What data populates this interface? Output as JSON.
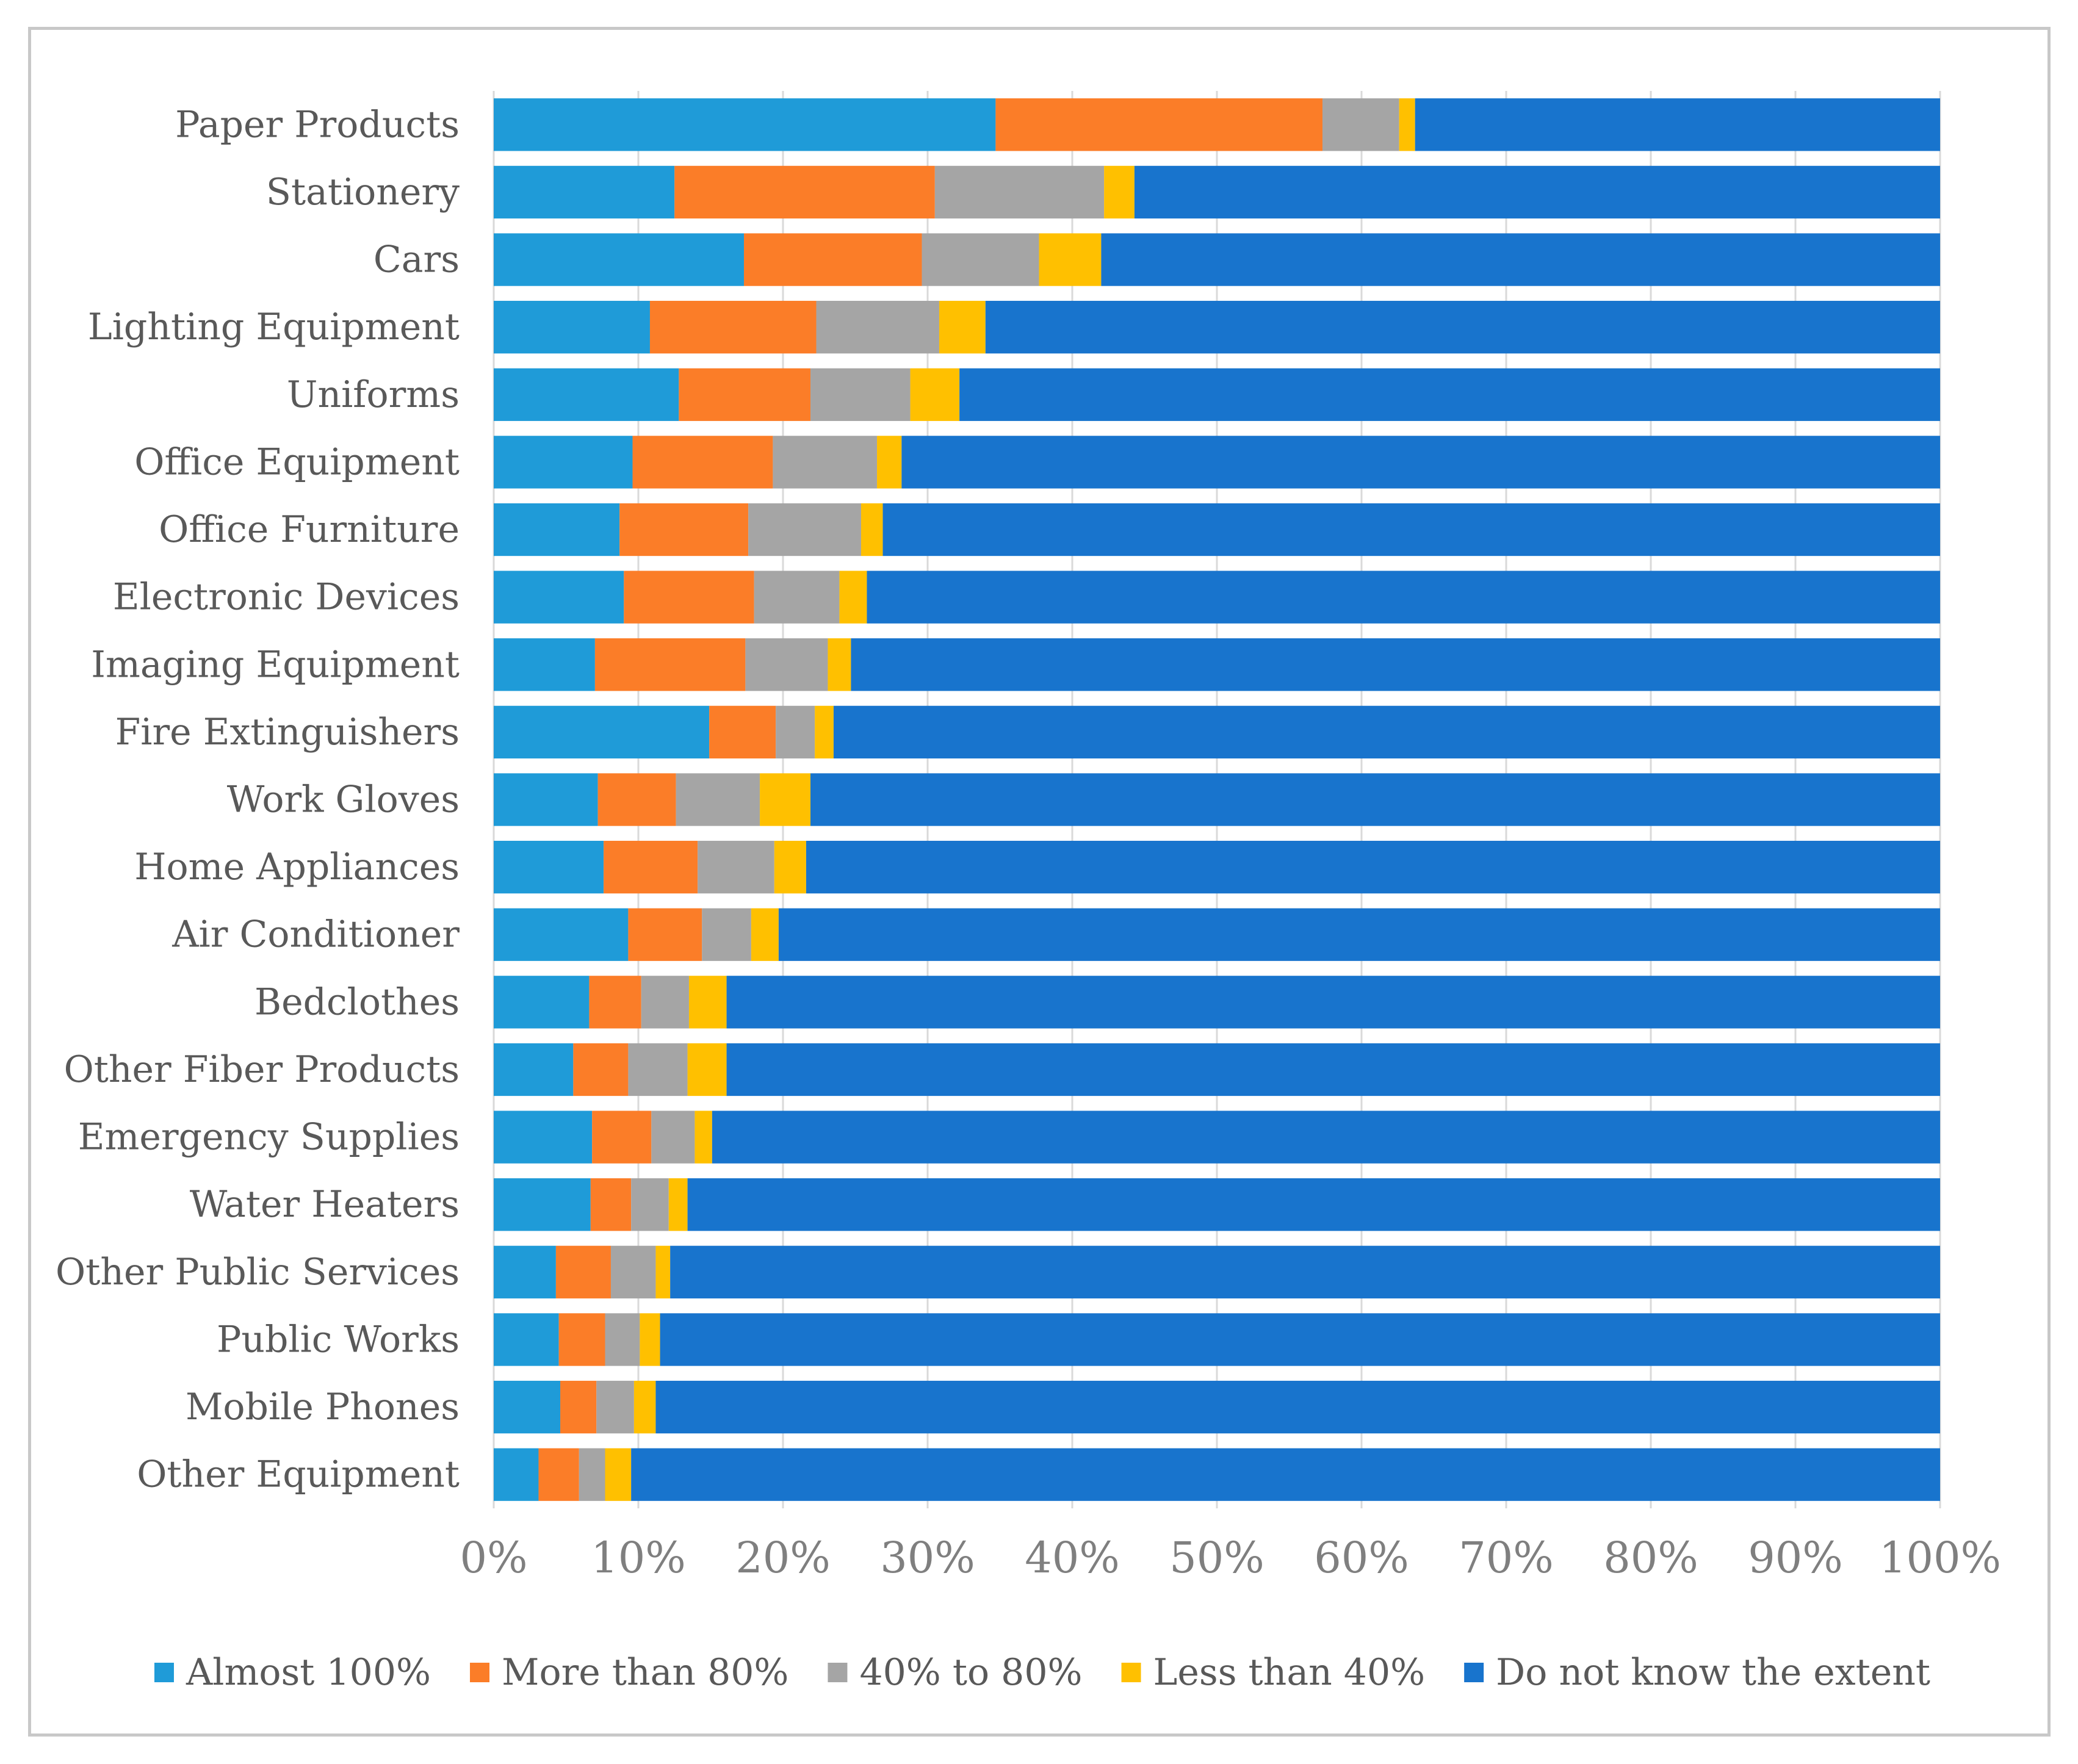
{
  "chart_data": {
    "type": "bar",
    "orientation": "horizontal",
    "stacked": "percent",
    "categories": [
      "Paper Products",
      "Stationery",
      "Cars",
      "Lighting Equipment",
      "Uniforms",
      "Office Equipment",
      "Office Furniture",
      "Electronic Devices",
      "Imaging Equipment",
      "Fire Extinguishers",
      "Work Gloves",
      "Home Appliances",
      "Air Conditioner",
      "Bedclothes",
      "Other Fiber Products",
      "Emergency Supplies",
      "Water Heaters",
      "Other Public Services",
      "Public Works",
      "Mobile Phones",
      "Other Equipment"
    ],
    "series": [
      {
        "name": "Almost 100%",
        "color": "#1f9bd8",
        "values": [
          34.7,
          12.5,
          17.3,
          10.8,
          12.8,
          9.6,
          8.7,
          9.0,
          7.0,
          14.9,
          7.2,
          7.6,
          9.3,
          6.6,
          5.5,
          6.8,
          6.7,
          4.3,
          4.5,
          4.6,
          3.1
        ]
      },
      {
        "name": "More than 80%",
        "color": "#fb7d28",
        "values": [
          22.6,
          18.0,
          12.3,
          11.5,
          9.1,
          9.7,
          8.9,
          9.0,
          10.4,
          4.6,
          5.4,
          6.5,
          5.1,
          3.6,
          3.8,
          4.1,
          2.8,
          3.8,
          3.2,
          2.5,
          2.8
        ]
      },
      {
        "name": "40% to 80%",
        "color": "#a5a5a5",
        "values": [
          5.3,
          11.7,
          8.1,
          8.5,
          6.9,
          7.2,
          7.8,
          5.9,
          5.7,
          2.7,
          5.8,
          5.3,
          3.4,
          3.3,
          4.1,
          3.0,
          2.6,
          3.1,
          2.4,
          2.6,
          1.8
        ]
      },
      {
        "name": "Less than 40%",
        "color": "#ffc000",
        "values": [
          1.1,
          2.1,
          4.3,
          3.2,
          3.4,
          1.7,
          1.5,
          1.9,
          1.6,
          1.3,
          3.5,
          2.2,
          1.9,
          2.6,
          2.7,
          1.2,
          1.3,
          1.0,
          1.4,
          1.5,
          1.8
        ]
      },
      {
        "name": "Do not know the extent",
        "color": "#1874cd",
        "values": [
          36.3,
          55.7,
          58.0,
          66.0,
          67.8,
          71.8,
          73.1,
          74.2,
          75.3,
          76.5,
          78.1,
          78.4,
          80.3,
          83.9,
          83.9,
          84.9,
          86.6,
          87.8,
          88.5,
          88.8,
          90.5
        ]
      }
    ],
    "xlim": [
      0,
      100
    ],
    "x_ticks": [
      "0%",
      "10%",
      "20%",
      "30%",
      "40%",
      "50%",
      "60%",
      "70%",
      "80%",
      "90%",
      "100%"
    ],
    "grid": "vertical",
    "legend_position": "bottom"
  }
}
